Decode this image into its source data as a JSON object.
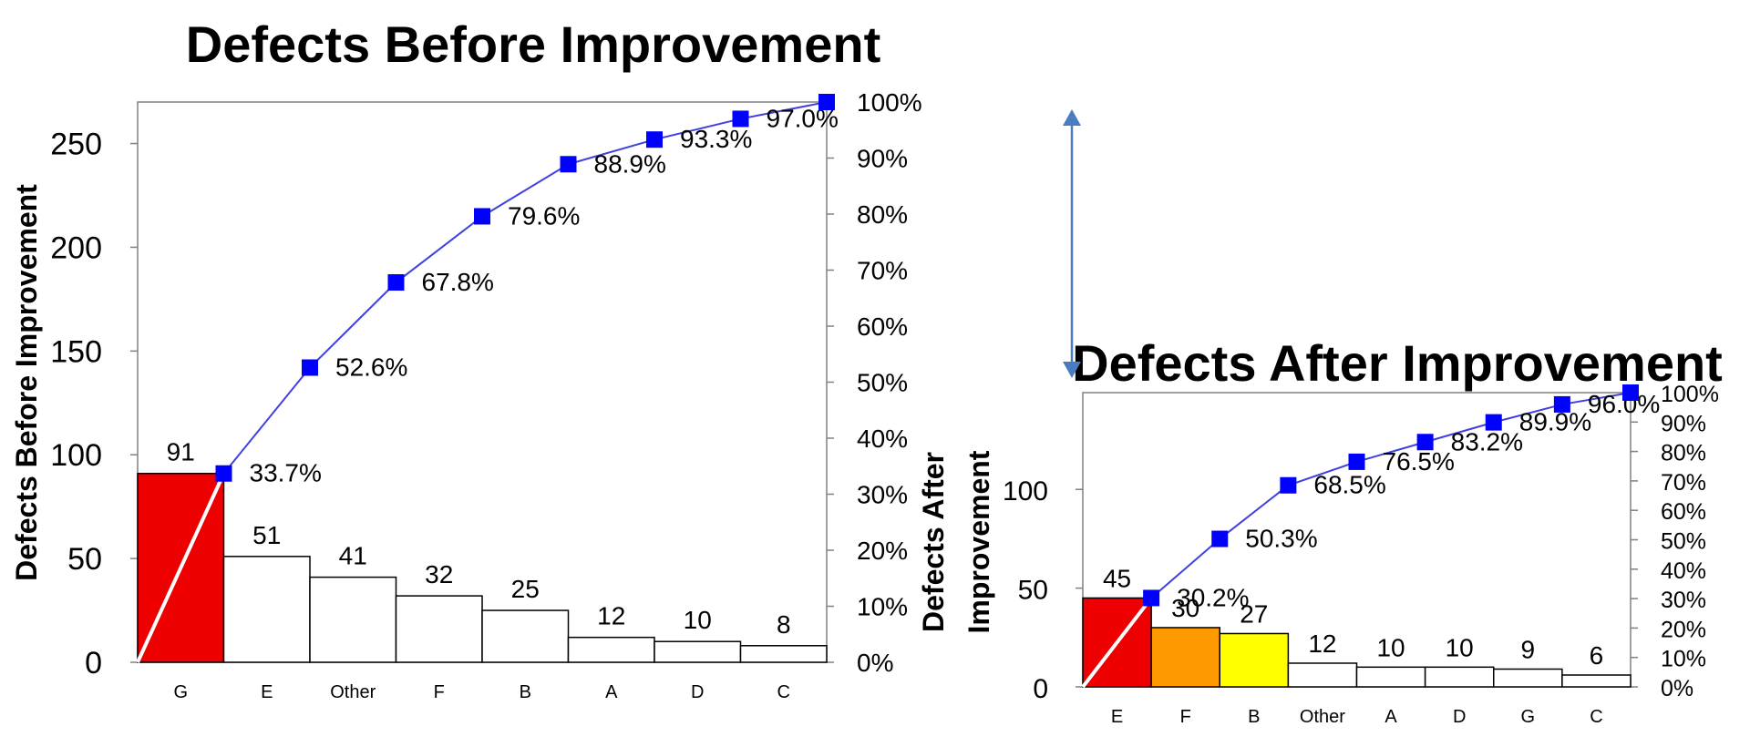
{
  "colors": {
    "line": "#4040e0",
    "marker": "#0000ff",
    "axis": "#808080",
    "arrow": "#4a7cc0",
    "bar_default": "#ffffff",
    "highlight_line": "#ffffff"
  },
  "arrow_icon": "double-headed-vertical-arrow",
  "chart_data": [
    {
      "type": "bar",
      "title": "Defects Before Improvement",
      "ylabel": "Defects Before Improvement",
      "categories": [
        "G",
        "E",
        "Other",
        "F",
        "B",
        "A",
        "D",
        "C"
      ],
      "values": [
        91,
        51,
        41,
        32,
        25,
        12,
        10,
        8
      ],
      "value_labels": [
        "91",
        "51",
        "41",
        "32",
        "25",
        "12",
        "10",
        "8"
      ],
      "bar_colors": [
        "#ee0000",
        "#ffffff",
        "#ffffff",
        "#ffffff",
        "#ffffff",
        "#ffffff",
        "#ffffff",
        "#ffffff"
      ],
      "ylim": [
        0,
        270
      ],
      "yticks": [
        0,
        50,
        100,
        150,
        200,
        250
      ],
      "ytick_labels": [
        "0",
        "50",
        "100",
        "150",
        "200",
        "250"
      ],
      "cumulative_line": {
        "type": "line",
        "values": [
          33.7,
          52.6,
          67.8,
          79.6,
          88.9,
          93.3,
          97.0,
          100.0
        ],
        "labels": [
          "33.7%",
          "52.6%",
          "67.8%",
          "79.6%",
          "88.9%",
          "93.3%",
          "97.0%",
          ""
        ],
        "ylim": [
          0,
          100
        ],
        "yticks": [
          0,
          10,
          20,
          30,
          40,
          50,
          60,
          70,
          80,
          90,
          100
        ],
        "ytick_labels": [
          "0%",
          "10%",
          "20%",
          "30%",
          "40%",
          "50%",
          "60%",
          "70%",
          "80%",
          "90%",
          "100%"
        ]
      }
    },
    {
      "type": "bar",
      "title": "Defects After Improvement",
      "ylabel": "Defects After Improvement",
      "ylabel_lines": [
        "Defects After",
        "Improvement"
      ],
      "categories": [
        "E",
        "F",
        "B",
        "Other",
        "A",
        "D",
        "G",
        "C"
      ],
      "values": [
        45,
        30,
        27,
        12,
        10,
        10,
        9,
        6
      ],
      "value_labels": [
        "45",
        "30",
        "27",
        "12",
        "10",
        "10",
        "9",
        "6"
      ],
      "bar_colors": [
        "#ee0000",
        "#ff9900",
        "#ffff00",
        "#ffffff",
        "#ffffff",
        "#ffffff",
        "#ffffff",
        "#ffffff"
      ],
      "ylim": [
        0,
        149
      ],
      "yticks": [
        0,
        50,
        100
      ],
      "ytick_labels": [
        "0",
        "50",
        "100"
      ],
      "cumulative_line": {
        "type": "line",
        "values": [
          30.2,
          50.3,
          68.5,
          76.5,
          83.2,
          89.9,
          96.0,
          100.0
        ],
        "labels": [
          "30.2%",
          "50.3%",
          "68.5%",
          "76.5%",
          "83.2%",
          "89.9%",
          "96.0%",
          ""
        ],
        "ylim": [
          0,
          100
        ],
        "yticks": [
          0,
          10,
          20,
          30,
          40,
          50,
          60,
          70,
          80,
          90,
          100
        ],
        "ytick_labels": [
          "0%",
          "10%",
          "20%",
          "30%",
          "40%",
          "50%",
          "60%",
          "70%",
          "80%",
          "90%",
          "100%"
        ]
      }
    }
  ]
}
